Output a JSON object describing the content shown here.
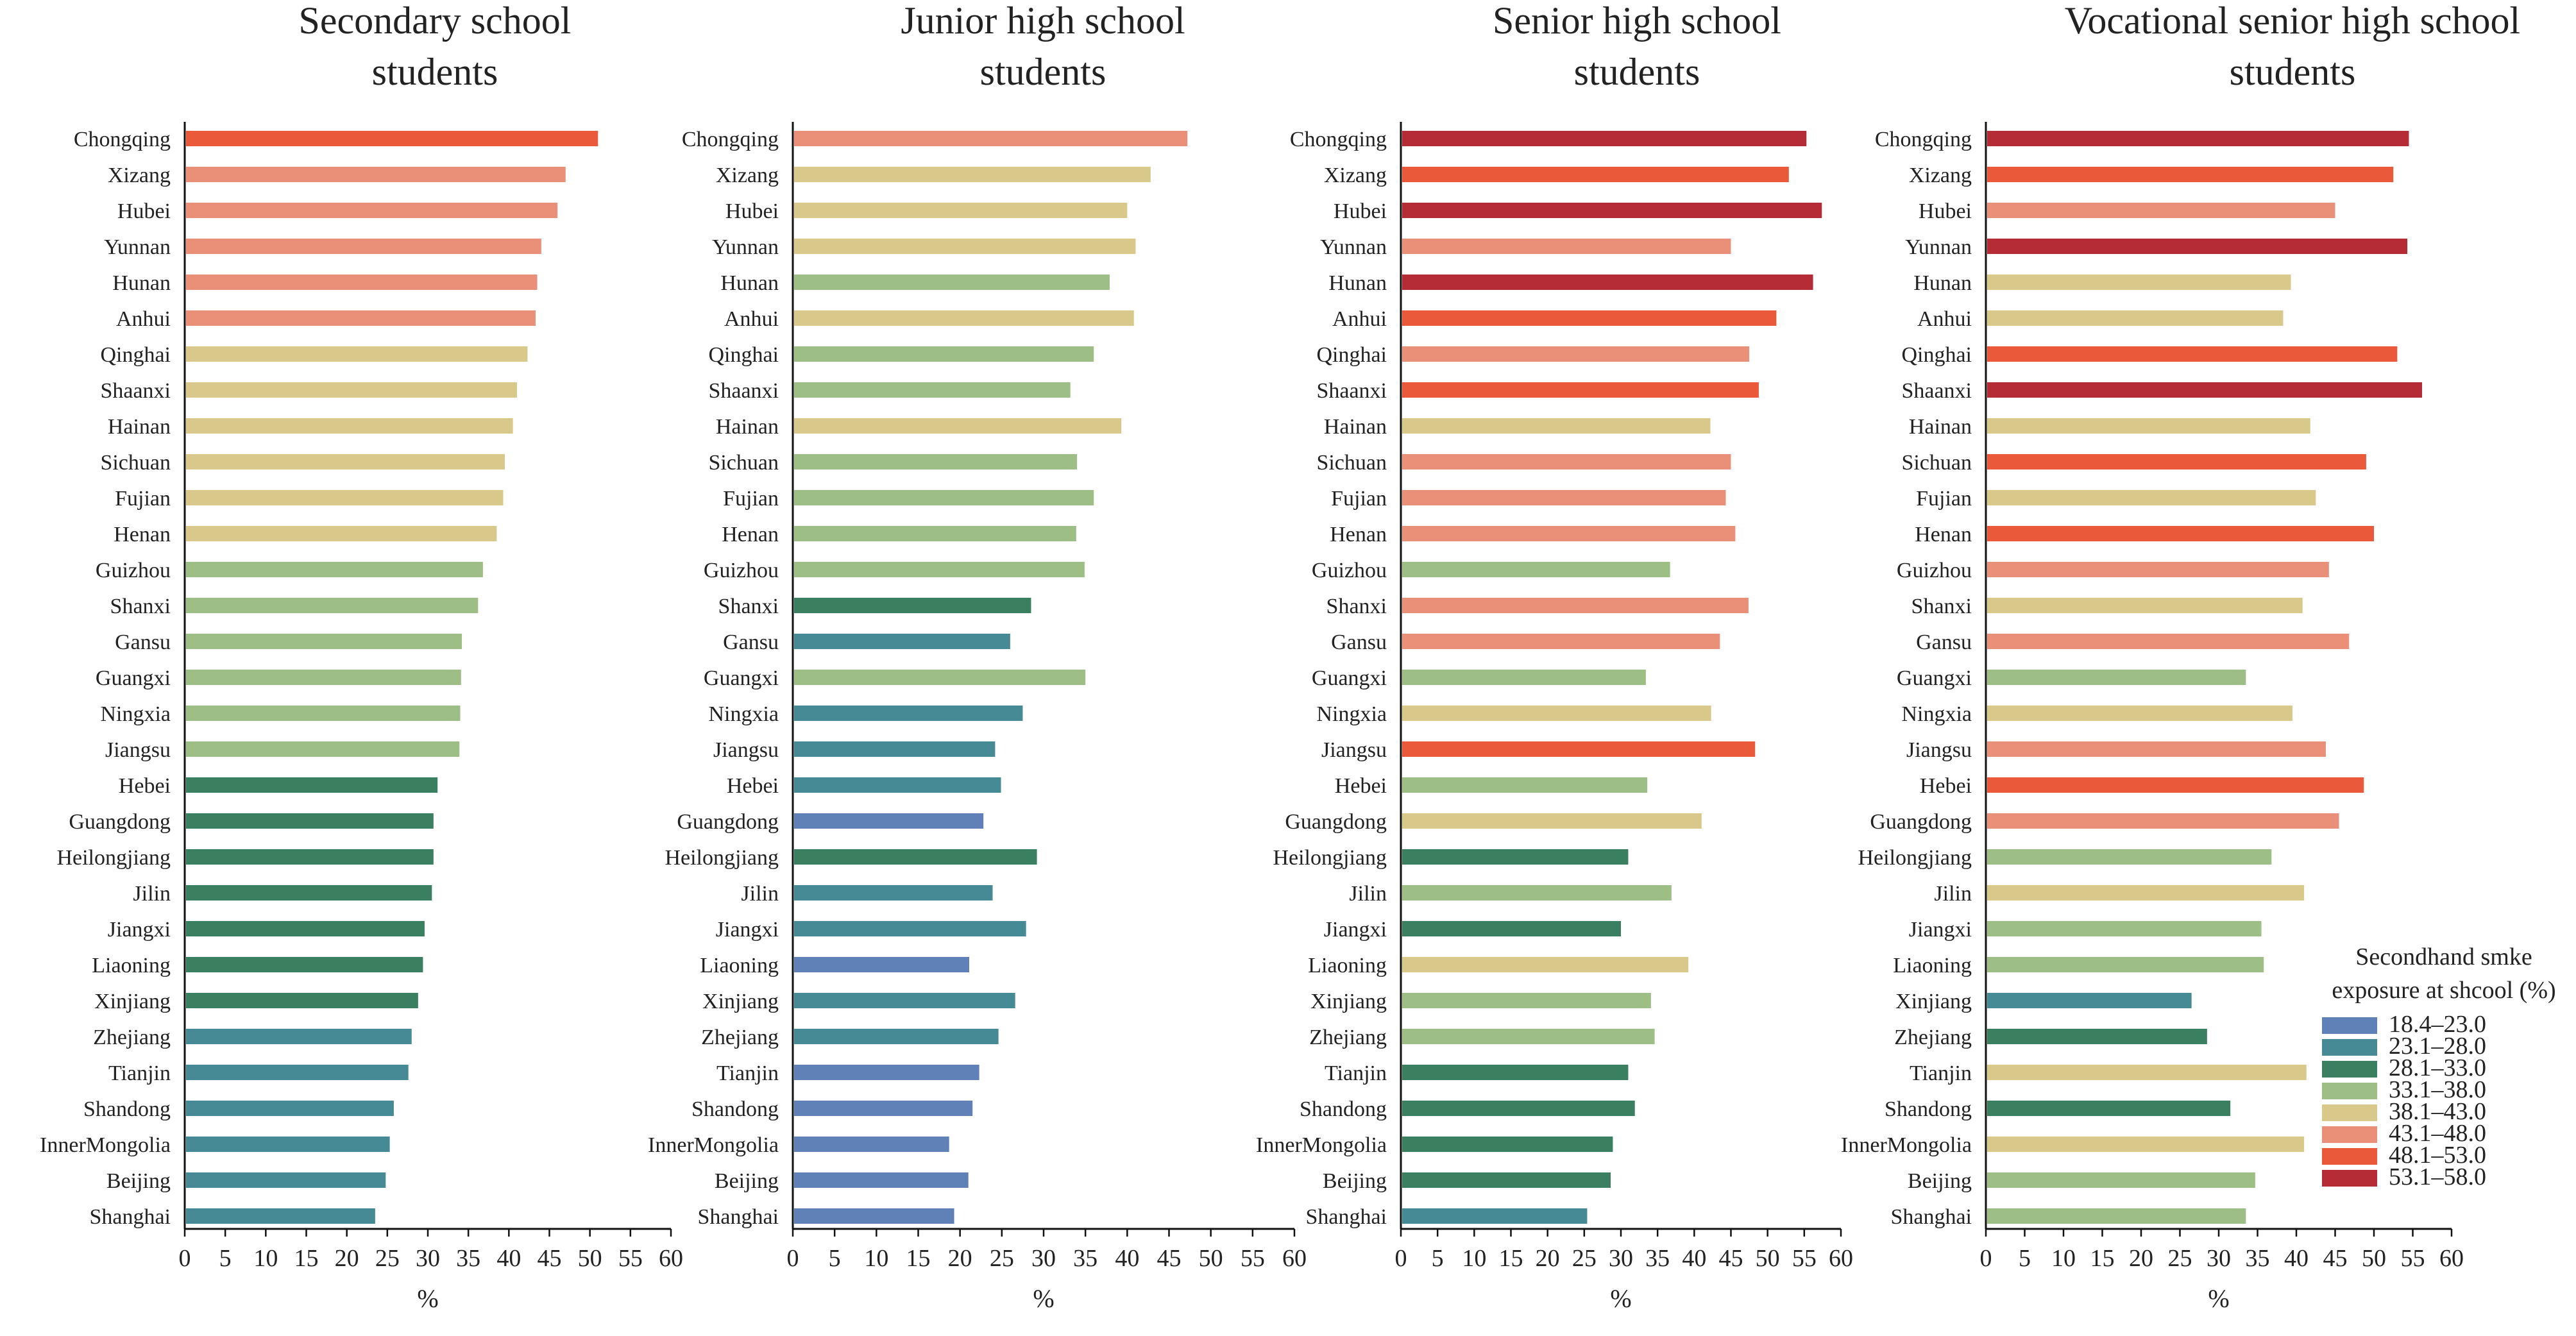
{
  "categories": [
    "Chongqing",
    "Xizang",
    "Hubei",
    "Yunnan",
    "Hunan",
    "Anhui",
    "Qinghai",
    "Shaanxi",
    "Hainan",
    "Sichuan",
    "Fujian",
    "Henan",
    "Guizhou",
    "Shanxi",
    "Gansu",
    "Guangxi",
    "Ningxia",
    "Jiangsu",
    "Hebei",
    "Guangdong",
    "Heilongjiang",
    "Jilin",
    "Jiangxi",
    "Liaoning",
    "Xinjiang",
    "Zhejiang",
    "Tianjin",
    "Shandong",
    "InnerMongolia",
    "Beijing",
    "Shanghai"
  ],
  "legend": {
    "title_line1": "Secondhand smke",
    "title_line2": "exposure at shcool (%)",
    "items": [
      {
        "label": "18.4–23.0",
        "color": "#6080b8"
      },
      {
        "label": "23.1–28.0",
        "color": "#468a96"
      },
      {
        "label": "28.1–33.0",
        "color": "#3a8060"
      },
      {
        "label": "33.1–38.0",
        "color": "#9dbf85"
      },
      {
        "label": "38.1–43.0",
        "color": "#d8c88a"
      },
      {
        "label": "43.1–48.0",
        "color": "#ea9078"
      },
      {
        "label": "48.1–53.0",
        "color": "#ea5a3a"
      },
      {
        "label": "53.1–58.0",
        "color": "#b52c36"
      }
    ]
  },
  "chart_data": [
    {
      "type": "bar",
      "orientation": "horizontal",
      "title": "Secondary school students",
      "title_lines": [
        "Secondary school",
        "students"
      ],
      "xlabel": "%",
      "xlim": [
        0,
        60
      ],
      "xticks": [
        0,
        5,
        10,
        15,
        20,
        25,
        30,
        35,
        40,
        45,
        50,
        55,
        60
      ],
      "values": [
        51.0,
        47.0,
        46.0,
        44.0,
        43.5,
        43.3,
        42.3,
        41.0,
        40.5,
        39.5,
        39.3,
        38.5,
        36.8,
        36.2,
        34.2,
        34.1,
        34.0,
        33.9,
        31.2,
        30.7,
        30.7,
        30.5,
        29.6,
        29.4,
        28.8,
        28.0,
        27.6,
        25.8,
        25.3,
        24.8,
        23.5
      ]
    },
    {
      "type": "bar",
      "orientation": "horizontal",
      "title": "Junior high school students",
      "title_lines": [
        "Junior high school",
        "students"
      ],
      "xlabel": "%",
      "xlim": [
        0,
        60
      ],
      "xticks": [
        0,
        5,
        10,
        15,
        20,
        25,
        30,
        35,
        40,
        45,
        50,
        55,
        60
      ],
      "values": [
        47.2,
        42.8,
        40.0,
        41.0,
        37.9,
        40.8,
        36.0,
        33.2,
        39.3,
        34.0,
        36.0,
        33.9,
        34.9,
        28.5,
        26.0,
        35.0,
        27.5,
        24.2,
        24.9,
        22.8,
        29.2,
        23.9,
        27.9,
        21.1,
        26.6,
        24.6,
        22.3,
        21.5,
        18.7,
        21.0,
        19.3
      ]
    },
    {
      "type": "bar",
      "orientation": "horizontal",
      "title": "Senior high school students",
      "title_lines": [
        "Senior high school",
        "students"
      ],
      "xlabel": "%",
      "xlim": [
        0,
        60
      ],
      "xticks": [
        0,
        5,
        10,
        15,
        20,
        25,
        30,
        35,
        40,
        45,
        50,
        55,
        60
      ],
      "values": [
        55.3,
        52.9,
        57.4,
        45.0,
        56.2,
        51.2,
        47.5,
        48.8,
        42.2,
        45.0,
        44.3,
        45.6,
        36.7,
        47.4,
        43.5,
        33.4,
        42.3,
        48.3,
        33.6,
        41.0,
        31.0,
        36.9,
        30.0,
        39.2,
        34.1,
        34.6,
        31.0,
        31.9,
        28.9,
        28.6,
        25.4
      ]
    },
    {
      "type": "bar",
      "orientation": "horizontal",
      "title": "Vocational senior high school students",
      "title_lines": [
        "Vocational senior high school",
        "students"
      ],
      "xlabel": "%",
      "xlim": [
        0,
        60
      ],
      "xticks": [
        0,
        5,
        10,
        15,
        20,
        25,
        30,
        35,
        40,
        45,
        50,
        55,
        60
      ],
      "values": [
        54.5,
        52.5,
        45.0,
        54.3,
        39.3,
        38.3,
        53.0,
        56.2,
        41.8,
        49.0,
        42.5,
        50.0,
        44.2,
        40.8,
        46.8,
        33.5,
        39.5,
        43.8,
        48.7,
        45.5,
        36.8,
        41.0,
        35.5,
        35.8,
        26.5,
        28.5,
        41.3,
        31.5,
        41.0,
        34.7,
        33.5
      ]
    }
  ]
}
